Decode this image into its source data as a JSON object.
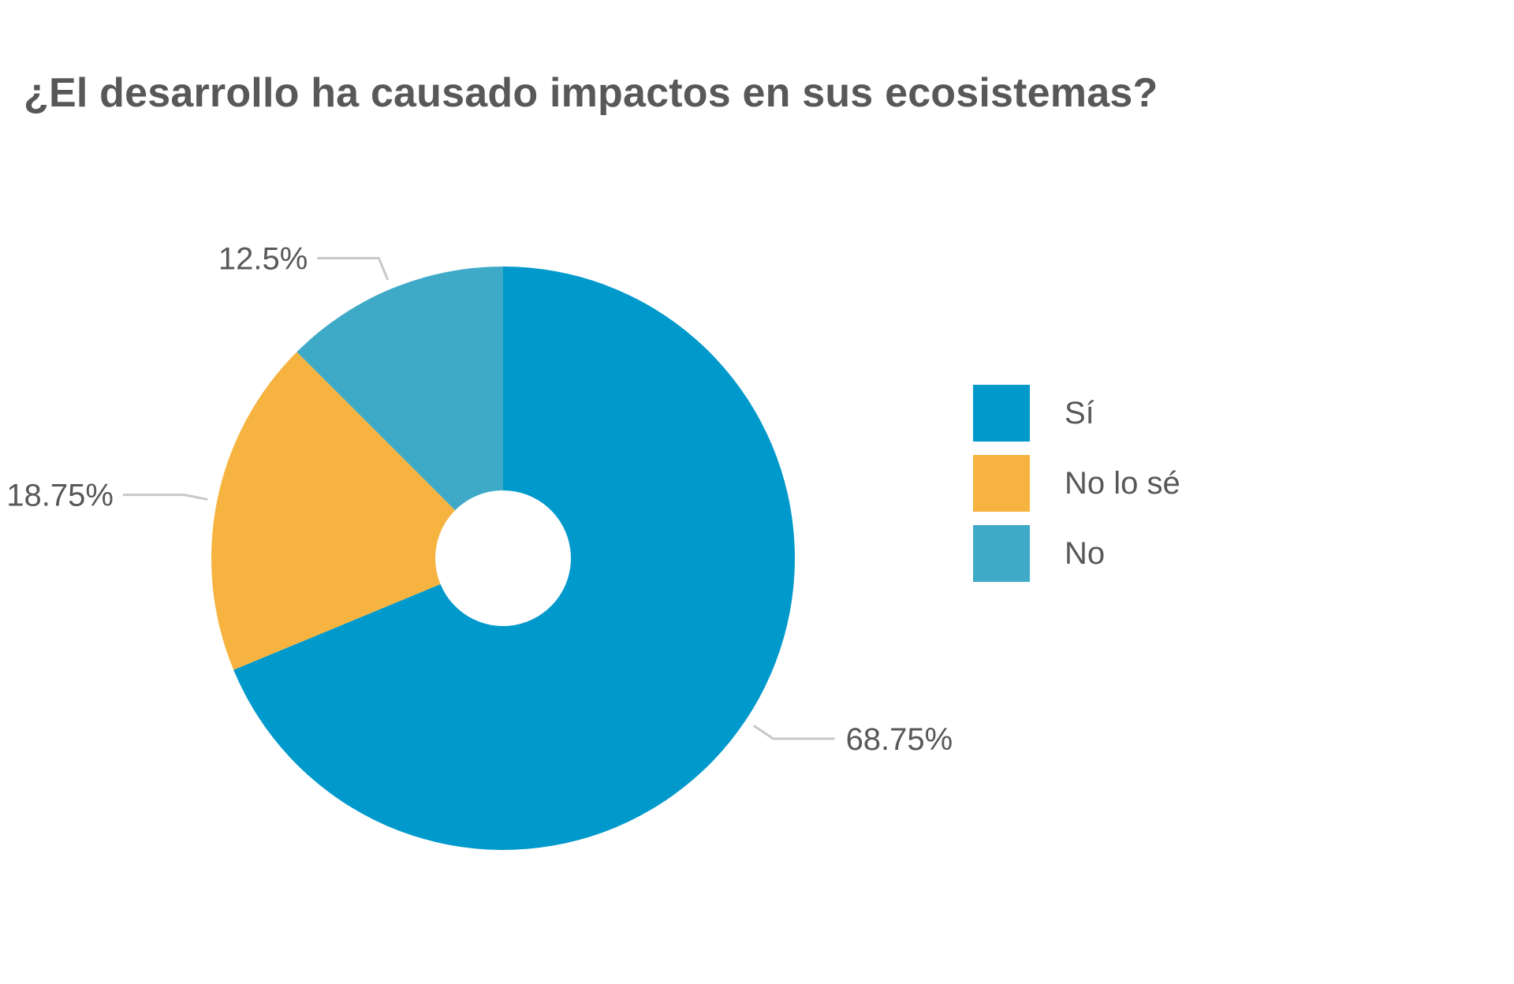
{
  "chart_data": {
    "type": "pie",
    "title": "¿El desarrollo ha causado impactos en sus ecosistemas?",
    "categories": [
      "Sí",
      "No lo sé",
      "No"
    ],
    "values": [
      68.75,
      18.75,
      12.5
    ],
    "labels": [
      "68.75%",
      "18.75%",
      "12.5%"
    ],
    "colors": [
      "#0099cc",
      "#f6b33f",
      "#3faac8"
    ],
    "legend_position": "right",
    "donut": true
  }
}
